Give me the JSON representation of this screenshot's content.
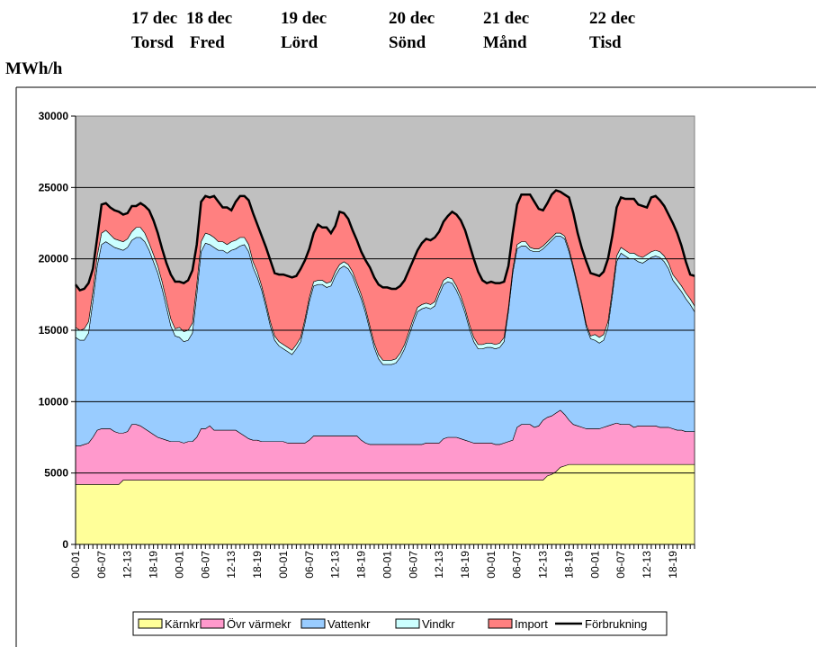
{
  "chart_data": {
    "type": "area",
    "ylabel": "MWh/h",
    "day_labels": [
      {
        "date": "17 dec",
        "day": "Torsd"
      },
      {
        "date": "18 dec",
        "day": "Fred"
      },
      {
        "date": "19 dec",
        "day": "Lörd"
      },
      {
        "date": "20 dec",
        "day": "Sönd"
      },
      {
        "date": "21 dec",
        "day": "Månd"
      },
      {
        "date": "22 dec",
        "day": "Tisd"
      }
    ],
    "categories": [
      "00-01",
      null,
      null,
      null,
      null,
      null,
      "06-07",
      null,
      null,
      null,
      null,
      null,
      "12-13",
      null,
      null,
      null,
      null,
      null,
      "18-19",
      null,
      null,
      null,
      null,
      null,
      "00-01",
      null,
      null,
      null,
      null,
      null,
      "06-07",
      null,
      null,
      null,
      null,
      null,
      "12-13",
      null,
      null,
      null,
      null,
      null,
      "18-19",
      null,
      null,
      null,
      null,
      null,
      "00-01",
      null,
      null,
      null,
      null,
      null,
      "06-07",
      null,
      null,
      null,
      null,
      null,
      "12-13",
      null,
      null,
      null,
      null,
      null,
      "18-19",
      null,
      null,
      null,
      null,
      null,
      "00-01",
      null,
      null,
      null,
      null,
      null,
      "06-07",
      null,
      null,
      null,
      null,
      null,
      "12-13",
      null,
      null,
      null,
      null,
      null,
      "18-19",
      null,
      null,
      null,
      null,
      null,
      "00-01",
      null,
      null,
      null,
      null,
      null,
      "06-07",
      null,
      null,
      null,
      null,
      null,
      "12-13",
      null,
      null,
      null,
      null,
      null,
      "18-19",
      null,
      null,
      null,
      null,
      null,
      "00-01",
      null,
      null,
      null,
      null,
      null,
      "06-07",
      null,
      null,
      null,
      null,
      null,
      "12-13",
      null,
      null,
      null,
      null,
      null,
      "18-19",
      null,
      null,
      null,
      null,
      null
    ],
    "ylim": [
      0,
      30000
    ],
    "yticks": [
      0,
      5000,
      10000,
      15000,
      20000,
      25000,
      30000
    ],
    "grid": true,
    "background": "#c0c0c0",
    "series": [
      {
        "name": "Kärnkr",
        "color": "#ffff99",
        "values": [
          4200,
          4200,
          4200,
          4200,
          4200,
          4200,
          4200,
          4200,
          4200,
          4200,
          4200,
          4500,
          4500,
          4500,
          4500,
          4500,
          4500,
          4500,
          4500,
          4500,
          4500,
          4500,
          4500,
          4500,
          4500,
          4500,
          4500,
          4500,
          4500,
          4500,
          4500,
          4500,
          4500,
          4500,
          4500,
          4500,
          4500,
          4500,
          4500,
          4500,
          4500,
          4500,
          4500,
          4500,
          4500,
          4500,
          4500,
          4500,
          4500,
          4500,
          4500,
          4500,
          4500,
          4500,
          4500,
          4500,
          4500,
          4500,
          4500,
          4500,
          4500,
          4500,
          4500,
          4500,
          4500,
          4500,
          4500,
          4500,
          4500,
          4500,
          4500,
          4500,
          4500,
          4500,
          4500,
          4500,
          4500,
          4500,
          4500,
          4500,
          4500,
          4500,
          4500,
          4500,
          4500,
          4500,
          4500,
          4500,
          4500,
          4500,
          4500,
          4500,
          4500,
          4500,
          4500,
          4500,
          4500,
          4500,
          4500,
          4500,
          4500,
          4500,
          4500,
          4500,
          4500,
          4500,
          4500,
          4500,
          4500,
          4800,
          4900,
          5100,
          5400,
          5500,
          5600,
          5600,
          5600,
          5600,
          5600,
          5600,
          5600,
          5600,
          5600,
          5600,
          5600,
          5600,
          5600,
          5600,
          5600,
          5600,
          5600,
          5600,
          5600,
          5600,
          5600,
          5600,
          5600,
          5600,
          5600,
          5600,
          5600,
          5600,
          5600,
          5600
        ]
      },
      {
        "name": "Övr värmekr",
        "color": "#ff99cc",
        "values": [
          2700,
          2700,
          2800,
          2900,
          3300,
          3800,
          3900,
          3900,
          3900,
          3700,
          3600,
          3300,
          3400,
          3900,
          3900,
          3800,
          3600,
          3400,
          3200,
          3000,
          2900,
          2800,
          2700,
          2700,
          2700,
          2600,
          2700,
          2700,
          3000,
          3600,
          3600,
          3800,
          3500,
          3500,
          3500,
          3500,
          3500,
          3500,
          3300,
          3100,
          2900,
          2800,
          2800,
          2700,
          2700,
          2700,
          2700,
          2700,
          2700,
          2600,
          2600,
          2600,
          2600,
          2600,
          2800,
          3100,
          3100,
          3100,
          3100,
          3100,
          3100,
          3100,
          3100,
          3100,
          3100,
          3100,
          2800,
          2600,
          2500,
          2500,
          2500,
          2500,
          2500,
          2500,
          2500,
          2500,
          2500,
          2500,
          2500,
          2500,
          2500,
          2600,
          2600,
          2600,
          2600,
          2900,
          3000,
          3000,
          3000,
          2900,
          2800,
          2700,
          2600,
          2600,
          2600,
          2600,
          2600,
          2500,
          2500,
          2600,
          2700,
          2800,
          3700,
          3900,
          3900,
          3900,
          3700,
          3800,
          4200,
          4100,
          4100,
          4100,
          4000,
          3600,
          3100,
          2800,
          2700,
          2600,
          2500,
          2500,
          2500,
          2500,
          2600,
          2700,
          2800,
          2900,
          2800,
          2800,
          2800,
          2600,
          2700,
          2700,
          2700,
          2700,
          2700,
          2600,
          2600,
          2600,
          2500,
          2400,
          2400,
          2300,
          2300,
          2300
        ]
      },
      {
        "name": "Vattenkr",
        "color": "#99ccff",
        "values": [
          7600,
          7400,
          7300,
          7700,
          9500,
          11500,
          12900,
          13100,
          12900,
          12900,
          12900,
          12800,
          12900,
          12900,
          13100,
          13200,
          13100,
          12700,
          12100,
          11500,
          10500,
          9300,
          8100,
          7400,
          7300,
          7100,
          7100,
          7600,
          10000,
          12400,
          13000,
          12700,
          12800,
          12600,
          12600,
          12400,
          12600,
          12700,
          13100,
          13400,
          13100,
          12100,
          11400,
          10600,
          9400,
          8100,
          7100,
          6700,
          6500,
          6400,
          6200,
          6600,
          7100,
          8400,
          9700,
          10500,
          10600,
          10600,
          10400,
          10500,
          11200,
          11700,
          11900,
          11700,
          11200,
          10400,
          9900,
          9100,
          8000,
          6800,
          6000,
          5600,
          5600,
          5600,
          5700,
          6100,
          6700,
          7600,
          8500,
          9300,
          9500,
          9500,
          9400,
          9600,
          10400,
          10800,
          10900,
          10800,
          10300,
          9700,
          8900,
          7900,
          7100,
          6600,
          6600,
          6700,
          6700,
          6700,
          6800,
          7100,
          9100,
          11700,
          12500,
          12500,
          12500,
          12200,
          12300,
          12200,
          12000,
          12100,
          12300,
          12400,
          12200,
          12300,
          11800,
          10900,
          9700,
          8500,
          7100,
          6300,
          6200,
          6000,
          6100,
          6900,
          9000,
          11300,
          12000,
          11800,
          11600,
          11800,
          11500,
          11400,
          11600,
          11800,
          11900,
          11900,
          11600,
          11100,
          10400,
          10100,
          9700,
          9300,
          8900,
          8400
        ]
      },
      {
        "name": "Vindkr",
        "color": "#ccffff",
        "values": [
          700,
          700,
          800,
          800,
          700,
          700,
          800,
          800,
          700,
          600,
          600,
          600,
          600,
          600,
          700,
          700,
          600,
          500,
          500,
          500,
          500,
          500,
          500,
          500,
          700,
          700,
          700,
          700,
          700,
          700,
          700,
          700,
          700,
          600,
          600,
          600,
          600,
          600,
          600,
          500,
          500,
          400,
          400,
          300,
          300,
          300,
          300,
          300,
          300,
          300,
          300,
          300,
          300,
          300,
          300,
          300,
          300,
          300,
          300,
          300,
          300,
          300,
          300,
          300,
          300,
          300,
          300,
          300,
          300,
          300,
          300,
          300,
          300,
          300,
          300,
          300,
          300,
          300,
          300,
          300,
          300,
          300,
          300,
          300,
          300,
          300,
          300,
          300,
          300,
          300,
          300,
          300,
          300,
          300,
          300,
          300,
          300,
          300,
          300,
          300,
          300,
          300,
          300,
          300,
          300,
          200,
          200,
          200,
          200,
          200,
          200,
          200,
          200,
          200,
          200,
          200,
          200,
          200,
          200,
          200,
          400,
          400,
          400,
          400,
          400,
          400,
          400,
          400,
          400,
          400,
          400,
          400,
          400,
          400,
          400,
          400,
          400,
          400,
          400,
          400,
          400,
          400,
          400,
          400
        ]
      },
      {
        "name": "Import",
        "color": "#ff8080",
        "values": [
          3000,
          2800,
          2800,
          2700,
          1600,
          1300,
          2000,
          1900,
          1900,
          2000,
          2000,
          1900,
          1800,
          1800,
          1500,
          1700,
          1900,
          2300,
          2400,
          2300,
          2300,
          2600,
          3100,
          3300,
          3200,
          3400,
          3500,
          3700,
          2800,
          2800,
          2600,
          2600,
          2900,
          2800,
          2400,
          2600,
          2200,
          2700,
          2900,
          2900,
          3100,
          3400,
          3300,
          3500,
          3900,
          4300,
          4400,
          4700,
          4900,
          5000,
          5100,
          4800,
          4800,
          4100,
          3400,
          3400,
          3900,
          3700,
          3900,
          3400,
          3200,
          3700,
          3400,
          3200,
          2900,
          3000,
          3000,
          3400,
          4100,
          4600,
          4900,
          5100,
          5100,
          5000,
          4900,
          4700,
          4500,
          4300,
          4100,
          4000,
          4300,
          4500,
          4500,
          4500,
          4100,
          4100,
          4300,
          4700,
          5000,
          5300,
          5500,
          5600,
          5500,
          5100,
          4500,
          4200,
          4300,
          4300,
          4200,
          3900,
          2900,
          2500,
          2800,
          3300,
          3300,
          3700,
          3300,
          2800,
          2500,
          2700,
          3000,
          3000,
          2900,
          2900,
          3600,
          3700,
          3600,
          3800,
          4400,
          4400,
          4200,
          4300,
          4400,
          4400,
          3800,
          3400,
          3500,
          3600,
          3800,
          3800,
          3600,
          3600,
          3300,
          3800,
          3800,
          3600,
          3500,
          3400,
          3600,
          3300,
          2800,
          2200,
          1700,
          2100
        ]
      },
      {
        "name": "Förbrukning",
        "color": "#000000",
        "type": "line",
        "values": [
          18200,
          17800,
          17900,
          18300,
          19300,
          21500,
          23800,
          23900,
          23600,
          23400,
          23300,
          23100,
          23200,
          23700,
          23700,
          23900,
          23700,
          23400,
          22700,
          21800,
          20700,
          19700,
          18900,
          18400,
          18400,
          18300,
          18500,
          19200,
          21000,
          24000,
          24400,
          24300,
          24400,
          24000,
          23600,
          23600,
          23400,
          24000,
          24400,
          24400,
          24100,
          23200,
          22400,
          21600,
          20800,
          19900,
          19000,
          18900,
          18900,
          18800,
          18700,
          18800,
          19300,
          19900,
          20700,
          21800,
          22400,
          22200,
          22200,
          21800,
          22300,
          23300,
          23200,
          22800,
          22000,
          21300,
          20500,
          19900,
          19400,
          18700,
          18200,
          18000,
          18000,
          17900,
          17900,
          18100,
          18500,
          19200,
          19900,
          20600,
          21100,
          21400,
          21300,
          21500,
          21900,
          22600,
          23000,
          23300,
          23100,
          22700,
          22000,
          21000,
          20000,
          19100,
          18500,
          18300,
          18400,
          18300,
          18300,
          18400,
          19500,
          21800,
          23800,
          24500,
          24500,
          24500,
          24000,
          23500,
          23400,
          23900,
          24500,
          24800,
          24700,
          24500,
          24300,
          23200,
          21800,
          20700,
          19800,
          19000,
          18900,
          18800,
          19100,
          20000,
          21600,
          23600,
          24300,
          24200,
          24200,
          24200,
          23800,
          23700,
          23600,
          24300,
          24400,
          24100,
          23700,
          23100,
          22500,
          21800,
          20900,
          19800,
          18900,
          18800
        ]
      }
    ]
  }
}
